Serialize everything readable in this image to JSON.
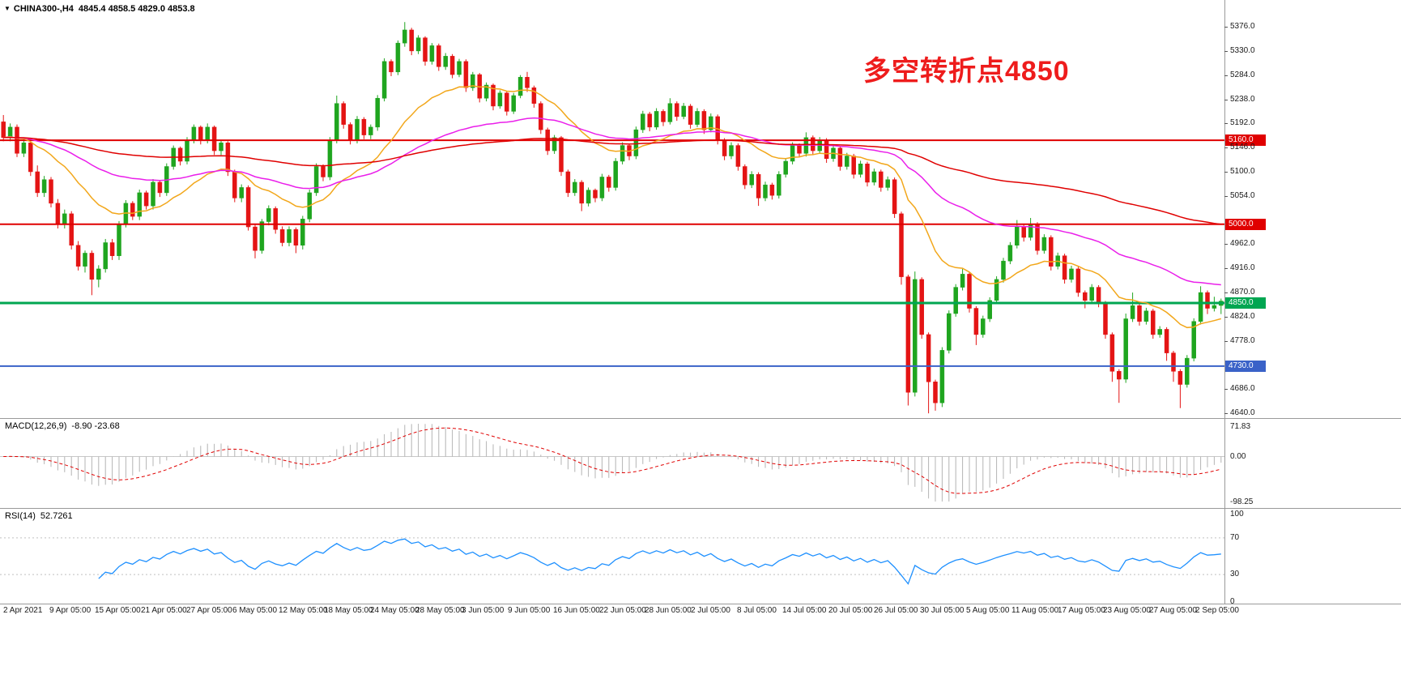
{
  "header": {
    "dropdown_icon": "▼",
    "symbol": "CHINA300-,H4",
    "ohlc_text": "4845.4 4858.5 4829.0 4853.8"
  },
  "annotation": {
    "text": "多空转折点4850",
    "color": "#ee1c1c"
  },
  "chart_data": {
    "type": "candlestick",
    "symbol": "CHINA300-",
    "timeframe": "H4",
    "title": "CHINA300-,H4",
    "current": {
      "open": 4845.4,
      "high": 4858.5,
      "low": 4829.0,
      "close": 4853.8
    },
    "y_axis": {
      "plot_top_price": 5427.0,
      "plot_bottom_price": 4631.0,
      "ticks": [
        5376.0,
        5330.0,
        5284.0,
        5238.0,
        5192.0,
        5146.0,
        5100.0,
        5054.0,
        4962.0,
        4916.0,
        4870.0,
        4824.0,
        4778.0,
        4686.0,
        4640.0
      ]
    },
    "x_axis_labels": [
      "2 Apr 2021",
      "9 Apr 05:00",
      "15 Apr 05:00",
      "21 Apr 05:00",
      "27 Apr 05:00",
      "6 May 05:00",
      "12 May 05:00",
      "18 May 05:00",
      "24 May 05:00",
      "28 May 05:00",
      "3 Jun 05:00",
      "9 Jun 05:00",
      "16 Jun 05:00",
      "22 Jun 05:00",
      "28 Jun 05:00",
      "2 Jul 05:00",
      "8 Jul 05:00",
      "14 Jul 05:00",
      "20 Jul 05:00",
      "26 Jul 05:00",
      "30 Jul 05:00",
      "5 Aug 05:00",
      "11 Aug 05:00",
      "17 Aug 05:00",
      "23 Aug 05:00",
      "27 Aug 05:00",
      "2 Sep 05:00"
    ],
    "levels": [
      {
        "price": 5160.0,
        "label": "5160.0",
        "color": "#e00000",
        "width": 2
      },
      {
        "price": 5000.0,
        "label": "5000.0",
        "color": "#e00000",
        "width": 2
      },
      {
        "price": 4850.0,
        "label": "4850.0",
        "color": "#00a651",
        "width": 3
      },
      {
        "price": 4730.0,
        "label": "4730.0",
        "color": "#3a62c8",
        "width": 2
      }
    ],
    "candle_colors": {
      "up": "#1fa51f",
      "down": "#e41414"
    },
    "moving_averages": [
      {
        "period": 20,
        "type": "ema",
        "color": "#f2a71b"
      },
      {
        "period": 55,
        "type": "ema",
        "color": "#ea1fea"
      },
      {
        "period": 150,
        "type": "ema",
        "color": "#e00000"
      }
    ],
    "indicators": {
      "macd": {
        "label": "MACD(12,26,9)",
        "values_text": "-8.90 -23.68",
        "fast": 12,
        "slow": 26,
        "signal": 9,
        "range_max": 71.83,
        "range_min": -98.25,
        "ticks": [
          "71.83",
          "0.00",
          "-98.25"
        ],
        "histogram_color": "#b4b4b4",
        "signal_color": "#e00000"
      },
      "rsi": {
        "label": "RSI(14)",
        "value_text": "52.7261",
        "period": 14,
        "color": "#1e90ff",
        "ticks": [
          100,
          70,
          30,
          0
        ],
        "levels": [
          70,
          30
        ]
      }
    },
    "candles": [
      [
        5195,
        5208,
        5158,
        5165
      ],
      [
        5165,
        5192,
        5158,
        5185
      ],
      [
        5185,
        5190,
        5128,
        5135
      ],
      [
        5135,
        5162,
        5128,
        5155
      ],
      [
        5155,
        5158,
        5092,
        5100
      ],
      [
        5100,
        5112,
        5052,
        5060
      ],
      [
        5060,
        5092,
        5052,
        5085
      ],
      [
        5085,
        5090,
        5032,
        5040
      ],
      [
        5040,
        5048,
        4992,
        5000
      ],
      [
        5000,
        5028,
        4992,
        5020
      ],
      [
        5020,
        5025,
        4952,
        4960
      ],
      [
        4960,
        4968,
        4912,
        4920
      ],
      [
        4920,
        4950,
        4908,
        4945
      ],
      [
        4945,
        4950,
        4865,
        4895
      ],
      [
        4895,
        4922,
        4880,
        4915
      ],
      [
        4915,
        4972,
        4908,
        4965
      ],
      [
        4965,
        4972,
        4932,
        4940
      ],
      [
        4940,
        5006,
        4932,
        5000
      ],
      [
        5000,
        5046,
        4994,
        5040
      ],
      [
        5040,
        5044,
        5008,
        5015
      ],
      [
        5015,
        5066,
        5008,
        5060
      ],
      [
        5060,
        5064,
        5028,
        5035
      ],
      [
        5035,
        5086,
        5028,
        5080
      ],
      [
        5080,
        5084,
        5052,
        5060
      ],
      [
        5060,
        5116,
        5054,
        5110
      ],
      [
        5110,
        5150,
        5104,
        5145
      ],
      [
        5145,
        5148,
        5112,
        5120
      ],
      [
        5120,
        5166,
        5114,
        5160
      ],
      [
        5160,
        5190,
        5154,
        5185
      ],
      [
        5185,
        5188,
        5152,
        5160
      ],
      [
        5160,
        5192,
        5154,
        5185
      ],
      [
        5185,
        5188,
        5132,
        5140
      ],
      [
        5140,
        5160,
        5132,
        5155
      ],
      [
        5155,
        5158,
        5092,
        5100
      ],
      [
        5100,
        5104,
        5042,
        5050
      ],
      [
        5050,
        5076,
        5042,
        5070
      ],
      [
        5070,
        5074,
        4988,
        4995
      ],
      [
        4995,
        5000,
        4935,
        4950
      ],
      [
        4950,
        5010,
        4944,
        5005
      ],
      [
        5005,
        5036,
        4998,
        5030
      ],
      [
        5030,
        5034,
        4982,
        4990
      ],
      [
        4990,
        4996,
        4958,
        4965
      ],
      [
        4965,
        4996,
        4958,
        4990
      ],
      [
        4990,
        4994,
        4945,
        4960
      ],
      [
        4960,
        5016,
        4952,
        5010
      ],
      [
        5010,
        5066,
        5004,
        5060
      ],
      [
        5060,
        5116,
        5054,
        5110
      ],
      [
        5110,
        5114,
        5082,
        5090
      ],
      [
        5090,
        5166,
        5084,
        5160
      ],
      [
        5160,
        5245,
        5154,
        5230
      ],
      [
        5230,
        5234,
        5182,
        5190
      ],
      [
        5190,
        5194,
        5152,
        5160
      ],
      [
        5160,
        5206,
        5154,
        5200
      ],
      [
        5200,
        5204,
        5162,
        5170
      ],
      [
        5170,
        5190,
        5162,
        5185
      ],
      [
        5185,
        5246,
        5178,
        5240
      ],
      [
        5240,
        5316,
        5234,
        5310
      ],
      [
        5310,
        5314,
        5282,
        5290
      ],
      [
        5290,
        5350,
        5284,
        5345
      ],
      [
        5345,
        5385,
        5338,
        5370
      ],
      [
        5370,
        5374,
        5322,
        5330
      ],
      [
        5330,
        5360,
        5324,
        5355
      ],
      [
        5355,
        5358,
        5302,
        5310
      ],
      [
        5310,
        5345,
        5304,
        5340
      ],
      [
        5340,
        5344,
        5292,
        5300
      ],
      [
        5300,
        5326,
        5294,
        5320
      ],
      [
        5320,
        5324,
        5278,
        5285
      ],
      [
        5285,
        5315,
        5280,
        5310
      ],
      [
        5310,
        5314,
        5252,
        5260
      ],
      [
        5260,
        5290,
        5254,
        5285
      ],
      [
        5285,
        5288,
        5232,
        5240
      ],
      [
        5240,
        5270,
        5234,
        5265
      ],
      [
        5265,
        5268,
        5217,
        5225
      ],
      [
        5225,
        5255,
        5220,
        5250
      ],
      [
        5250,
        5254,
        5207,
        5215
      ],
      [
        5215,
        5250,
        5210,
        5245
      ],
      [
        5245,
        5284,
        5240,
        5280
      ],
      [
        5280,
        5290,
        5252,
        5260
      ],
      [
        5260,
        5264,
        5222,
        5230
      ],
      [
        5230,
        5234,
        5172,
        5180
      ],
      [
        5180,
        5184,
        5132,
        5140
      ],
      [
        5140,
        5170,
        5134,
        5165
      ],
      [
        5165,
        5168,
        5092,
        5100
      ],
      [
        5100,
        5104,
        5052,
        5060
      ],
      [
        5060,
        5086,
        5054,
        5080
      ],
      [
        5080,
        5084,
        5025,
        5040
      ],
      [
        5040,
        5070,
        5034,
        5065
      ],
      [
        5065,
        5068,
        5042,
        5050
      ],
      [
        5050,
        5096,
        5044,
        5090
      ],
      [
        5090,
        5094,
        5062,
        5070
      ],
      [
        5070,
        5126,
        5064,
        5120
      ],
      [
        5120,
        5156,
        5114,
        5150
      ],
      [
        5150,
        5154,
        5122,
        5130
      ],
      [
        5130,
        5186,
        5124,
        5180
      ],
      [
        5180,
        5216,
        5174,
        5210
      ],
      [
        5210,
        5214,
        5177,
        5185
      ],
      [
        5185,
        5221,
        5180,
        5215
      ],
      [
        5215,
        5219,
        5187,
        5195
      ],
      [
        5195,
        5240,
        5190,
        5230
      ],
      [
        5230,
        5234,
        5197,
        5205
      ],
      [
        5205,
        5231,
        5200,
        5225
      ],
      [
        5225,
        5229,
        5182,
        5190
      ],
      [
        5190,
        5221,
        5185,
        5215
      ],
      [
        5215,
        5219,
        5172,
        5180
      ],
      [
        5180,
        5211,
        5175,
        5205
      ],
      [
        5205,
        5209,
        5152,
        5160
      ],
      [
        5160,
        5164,
        5122,
        5130
      ],
      [
        5130,
        5156,
        5124,
        5150
      ],
      [
        5150,
        5154,
        5102,
        5110
      ],
      [
        5110,
        5114,
        5067,
        5075
      ],
      [
        5075,
        5101,
        5069,
        5095
      ],
      [
        5095,
        5099,
        5035,
        5050
      ],
      [
        5050,
        5081,
        5044,
        5075
      ],
      [
        5075,
        5079,
        5047,
        5055
      ],
      [
        5055,
        5101,
        5049,
        5095
      ],
      [
        5095,
        5126,
        5089,
        5120
      ],
      [
        5120,
        5156,
        5114,
        5150
      ],
      [
        5150,
        5154,
        5127,
        5135
      ],
      [
        5135,
        5175,
        5129,
        5165
      ],
      [
        5165,
        5169,
        5132,
        5140
      ],
      [
        5140,
        5166,
        5134,
        5160
      ],
      [
        5160,
        5164,
        5117,
        5125
      ],
      [
        5125,
        5151,
        5119,
        5145
      ],
      [
        5145,
        5149,
        5102,
        5110
      ],
      [
        5110,
        5136,
        5104,
        5130
      ],
      [
        5130,
        5134,
        5087,
        5095
      ],
      [
        5095,
        5121,
        5089,
        5115
      ],
      [
        5115,
        5119,
        5072,
        5080
      ],
      [
        5080,
        5106,
        5074,
        5100
      ],
      [
        5100,
        5104,
        5062,
        5070
      ],
      [
        5070,
        5091,
        5064,
        5085
      ],
      [
        5085,
        5089,
        5012,
        5020
      ],
      [
        5020,
        5024,
        4885,
        4900
      ],
      [
        4900,
        4904,
        4655,
        4680
      ],
      [
        4680,
        4910,
        4672,
        4895
      ],
      [
        4895,
        4899,
        4782,
        4790
      ],
      [
        4790,
        4794,
        4640,
        4700
      ],
      [
        4700,
        4704,
        4645,
        4660
      ],
      [
        4660,
        4766,
        4652,
        4760
      ],
      [
        4760,
        4836,
        4754,
        4830
      ],
      [
        4830,
        4886,
        4824,
        4880
      ],
      [
        4880,
        4915,
        4874,
        4905
      ],
      [
        4905,
        4909,
        4832,
        4840
      ],
      [
        4840,
        4844,
        4770,
        4790
      ],
      [
        4790,
        4826,
        4784,
        4820
      ],
      [
        4820,
        4861,
        4814,
        4855
      ],
      [
        4855,
        4901,
        4849,
        4895
      ],
      [
        4895,
        4936,
        4889,
        4930
      ],
      [
        4930,
        4966,
        4924,
        4960
      ],
      [
        4960,
        5008,
        4954,
        4995
      ],
      [
        4995,
        4999,
        4967,
        4975
      ],
      [
        4975,
        5012,
        4969,
        5000
      ],
      [
        5000,
        5004,
        4942,
        4950
      ],
      [
        4950,
        4981,
        4944,
        4975
      ],
      [
        4975,
        4979,
        4912,
        4920
      ],
      [
        4920,
        4946,
        4914,
        4940
      ],
      [
        4940,
        4944,
        4887,
        4895
      ],
      [
        4895,
        4921,
        4889,
        4915
      ],
      [
        4915,
        4919,
        4862,
        4870
      ],
      [
        4870,
        4874,
        4840,
        4855
      ],
      [
        4855,
        4886,
        4849,
        4880
      ],
      [
        4880,
        4884,
        4842,
        4850
      ],
      [
        4850,
        4854,
        4782,
        4790
      ],
      [
        4790,
        4794,
        4700,
        4720
      ],
      [
        4720,
        4724,
        4660,
        4705
      ],
      [
        4705,
        4830,
        4698,
        4820
      ],
      [
        4820,
        4870,
        4814,
        4845
      ],
      [
        4845,
        4849,
        4807,
        4815
      ],
      [
        4815,
        4841,
        4809,
        4835
      ],
      [
        4835,
        4839,
        4782,
        4790
      ],
      [
        4790,
        4806,
        4784,
        4800
      ],
      [
        4800,
        4804,
        4740,
        4755
      ],
      [
        4755,
        4759,
        4700,
        4720
      ],
      [
        4720,
        4724,
        4650,
        4695
      ],
      [
        4695,
        4751,
        4689,
        4745
      ],
      [
        4745,
        4821,
        4739,
        4815
      ],
      [
        4815,
        4882,
        4809,
        4870
      ],
      [
        4870,
        4874,
        4829,
        4840
      ],
      [
        4840,
        4862,
        4834,
        4845.4
      ],
      [
        4845.4,
        4858.5,
        4829.0,
        4853.8
      ]
    ]
  }
}
